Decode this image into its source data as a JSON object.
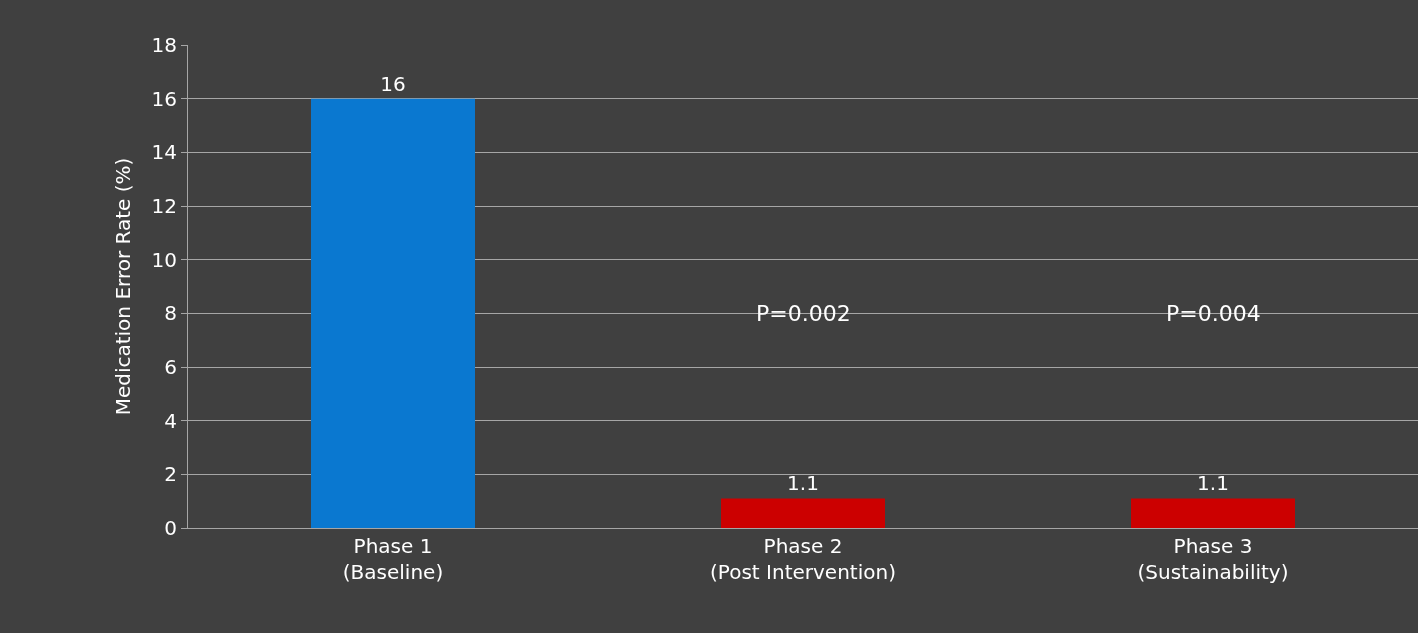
{
  "chart_data": {
    "type": "bar",
    "ylabel": "Medication Error Rate (%)",
    "categories": [
      "Phase 1\n(Baseline)",
      "Phase 2\n(Post Intervention)",
      "Phase 3\n(Sustainability)"
    ],
    "values": [
      16,
      1.1,
      1.1
    ],
    "colors": [
      "#0a78d0",
      "#cc0000",
      "#cc0000"
    ],
    "ylim": [
      0,
      18
    ],
    "yticks": [
      0,
      2,
      4,
      6,
      8,
      10,
      12,
      14,
      16,
      18
    ],
    "grid": "y",
    "data_labels": true,
    "annotations": [
      "P=0.002",
      "P=0.004"
    ]
  }
}
